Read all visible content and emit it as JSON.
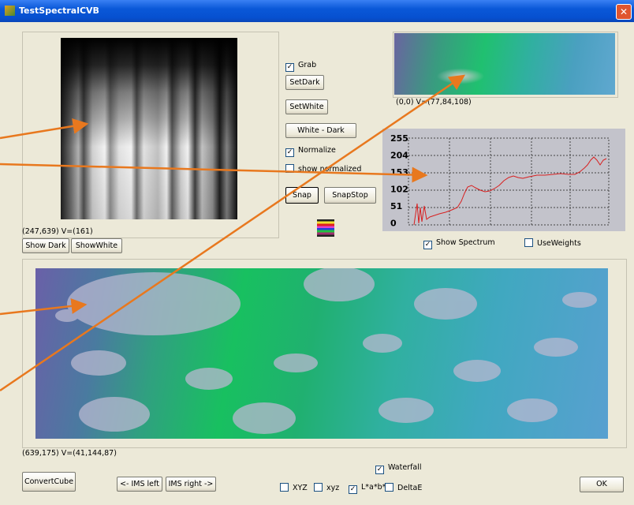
{
  "window": {
    "title": "TestSpectralCVB"
  },
  "left_panel": {
    "status": "(247,639) V=(161)",
    "buttons": [
      "Show Dark",
      "ShowWhite"
    ]
  },
  "controls": {
    "grab": "Grab",
    "set_dark": "SetDark",
    "set_white": "SetWhite",
    "white_dark": "White - Dark",
    "normalize": "Normalize",
    "show_normalized": "show normalized",
    "snap": "Snap",
    "snap_stop": "SnapStop"
  },
  "preview": {
    "status": "(0,0) V=(77,84,108)"
  },
  "spectrum": {
    "y_labels": [
      "255",
      "204",
      "153",
      "102",
      "51",
      "0"
    ],
    "show_spectrum": "Show Spectrum",
    "use_weights": "UseWeights"
  },
  "main_image": {
    "status": "(639,175) V=(41,144,87)"
  },
  "bottom": {
    "convert_cube": "ConvertCube",
    "ims_left": "<- IMS left",
    "ims_right": "IMS right ->",
    "waterfall": "Waterfall",
    "options": [
      "XYZ",
      "xyz",
      "L*a*b*",
      "DeltaE"
    ],
    "ok": "OK"
  }
}
